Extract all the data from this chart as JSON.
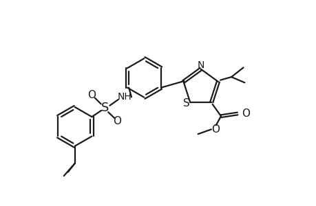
{
  "bg_color": "#ffffff",
  "line_color": "#1a1a1a",
  "line_width": 1.6,
  "font_size": 10,
  "fig_width": 4.6,
  "fig_height": 3.0,
  "dpi": 100,
  "xlim": [
    0,
    10
  ],
  "ylim": [
    0,
    6.5
  ]
}
